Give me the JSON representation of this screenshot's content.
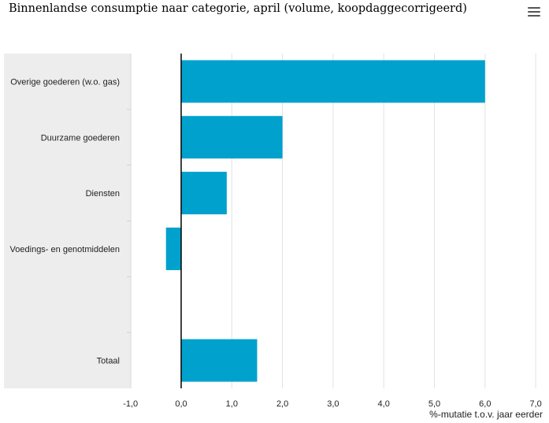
{
  "title": "Binnenlandse consumptie naar categorie, april (volume, koopdaggecorrigeerd)",
  "menu_icon": "hamburger-menu-icon",
  "colors": {
    "bar": "#00A1CD",
    "category_band": "#EDEDED",
    "grid": "#E2E2E2",
    "zero_line": "#000000"
  },
  "chart_data": {
    "type": "bar",
    "orientation": "horizontal",
    "categories": [
      "Overige goederen (w.o. gas)",
      "Duurzame goederen",
      "Diensten",
      "Voedings- en genotmiddelen",
      "",
      "Totaal"
    ],
    "values": [
      6.0,
      2.0,
      0.9,
      -0.3,
      null,
      1.5
    ],
    "xlabel": "%-mutatie t.o.v. jaar eerder",
    "xlim": [
      -1.0,
      7.0
    ],
    "xticks": [
      "-1,0",
      "0,0",
      "1,0",
      "2,0",
      "3,0",
      "4,0",
      "5,0",
      "6,0",
      "7,0"
    ],
    "grid": true,
    "legend": "none"
  }
}
